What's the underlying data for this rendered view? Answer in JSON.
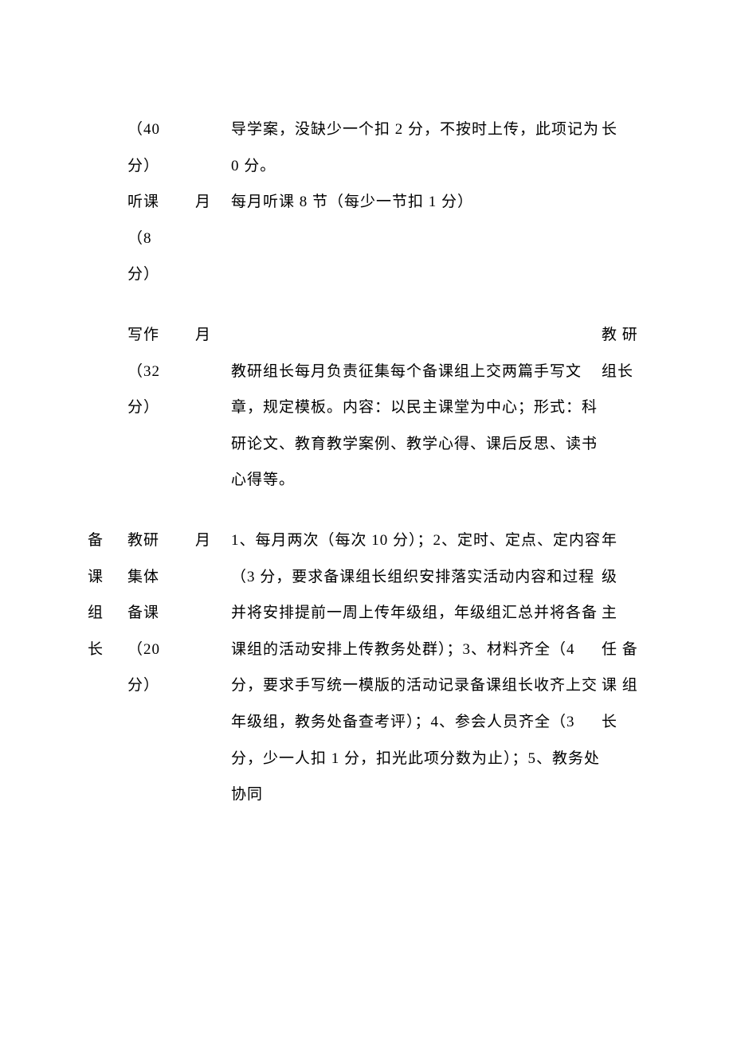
{
  "table": {
    "rows": [
      {
        "col1": "",
        "col2_line1": "（40",
        "col2_line2": "分）",
        "col3": "",
        "col4": "导学案，没缺少一个扣 2 分，不按时上传，此项记为 0 分。",
        "col5": "长"
      },
      {
        "col1": "",
        "col2_line1": "听课",
        "col2_line2": "（8",
        "col2_line3": "分）",
        "col3": "月",
        "col4": "每月听课 8 节（每少一节扣 1 分）",
        "col5": ""
      },
      {
        "col1": "",
        "col2_line1": "写作",
        "col2_line2": "（32",
        "col2_line3": "分）",
        "col3": "月",
        "col4": "教研组长每月负责征集每个备课组上交两篇手写文章，规定模板。内容：以民主课堂为中心；形式：科研论文、教育教学案例、教学心得、课后反思、读书心得等。",
        "col5_line1": "教 研",
        "col5_line2": "组长"
      },
      {
        "col1_line1": "备",
        "col1_line2": "课",
        "col1_line3": "组",
        "col1_line4": "长",
        "col2_line1": "教研",
        "col2_line2": "集体",
        "col2_line3": "备课",
        "col2_line4": "（20",
        "col2_line5": "分）",
        "col3": "月",
        "col4": "1、每月两次（每次 10 分）；2、定时、定点、定内容（3 分，要求备课组长组织安排落实活动内容和过程并将安排提前一周上传年级组，年级组汇总并将各备课组的活动安排上传教务处群）；3、材料齐全（4 分，要求手写统一模版的活动记录备课组长收齐上交年级组，教务处备查考评）；4、参会人员齐全（3 分，少一人扣 1 分，扣光此项分数为止）；5、教务处协同",
        "col5_line1": "年",
        "col5_line2": "级",
        "col5_line3": "主",
        "col5_line4": "任 备",
        "col5_line5": "课 组",
        "col5_line6": "长"
      }
    ]
  }
}
